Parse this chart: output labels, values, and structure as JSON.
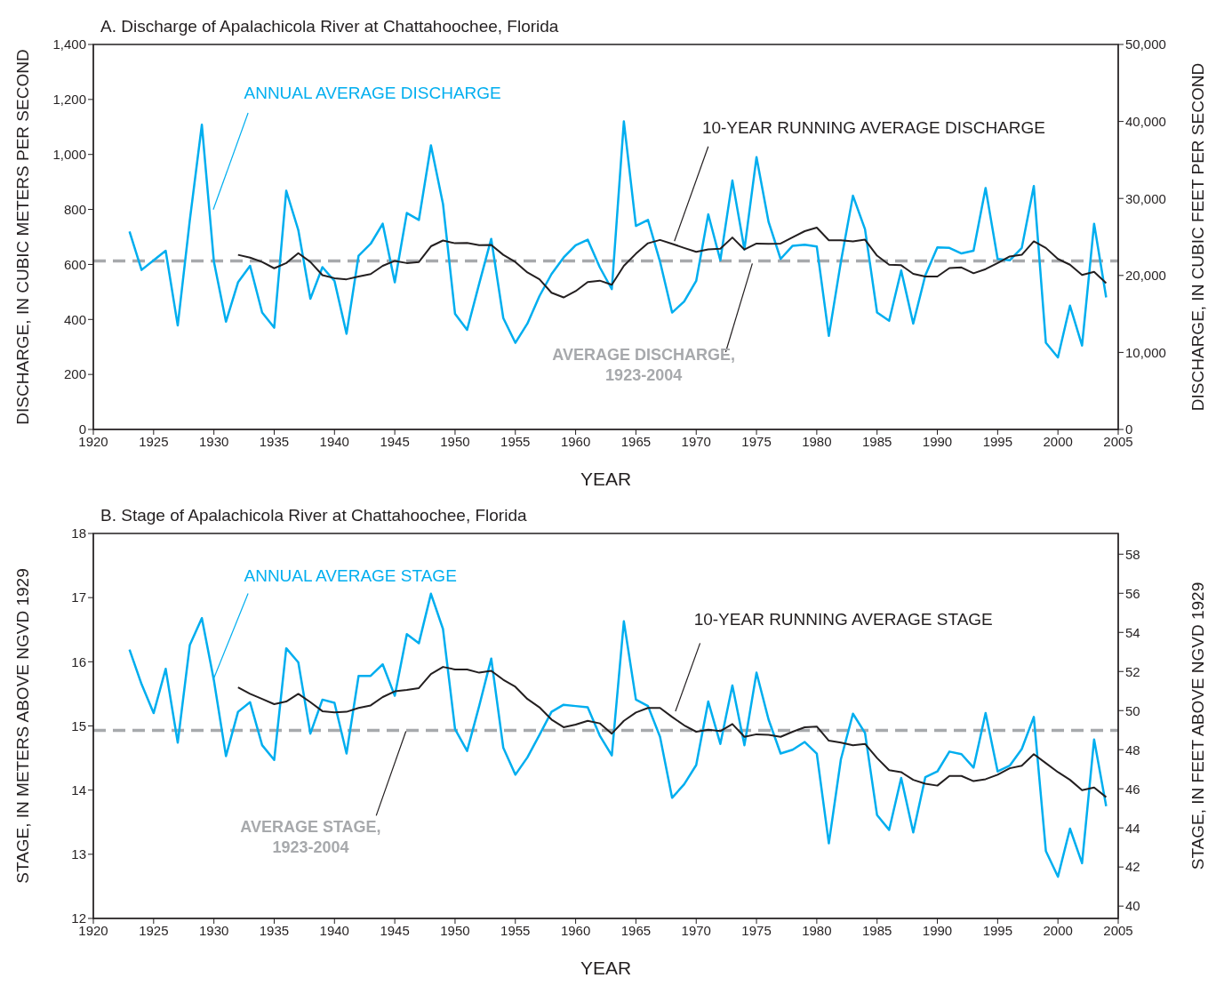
{
  "chart_data": [
    {
      "type": "line",
      "title": "A.  Discharge of Apalachicola River at Chattahoochee, Florida",
      "xlabel": "YEAR",
      "ylabel": "DISCHARGE, IN CUBIC METERS PER SECOND",
      "y2label": "DISCHARGE, IN CUBIC FEET PER SECOND",
      "x": [
        1923,
        1924,
        1925,
        1926,
        1927,
        1928,
        1929,
        1930,
        1931,
        1932,
        1933,
        1934,
        1935,
        1936,
        1937,
        1938,
        1939,
        1940,
        1941,
        1942,
        1943,
        1944,
        1945,
        1946,
        1947,
        1948,
        1949,
        1950,
        1951,
        1952,
        1953,
        1954,
        1955,
        1956,
        1957,
        1958,
        1959,
        1960,
        1961,
        1962,
        1963,
        1964,
        1965,
        1966,
        1967,
        1968,
        1969,
        1970,
        1971,
        1972,
        1973,
        1974,
        1975,
        1976,
        1977,
        1978,
        1979,
        1980,
        1981,
        1982,
        1983,
        1984,
        1985,
        1986,
        1987,
        1988,
        1989,
        1990,
        1991,
        1992,
        1993,
        1994,
        1995,
        1996,
        1997,
        1998,
        1999,
        2000,
        2001,
        2002,
        2003,
        2004
      ],
      "series": [
        {
          "name": "ANNUAL AVERAGE DISCHARGE",
          "color": "#00aeef",
          "values": [
            720,
            580,
            615,
            650,
            378,
            760,
            1108,
            610,
            392,
            535,
            595,
            425,
            370,
            868,
            725,
            475,
            590,
            540,
            348,
            632,
            675,
            748,
            535,
            787,
            762,
            1033,
            820,
            420,
            362,
            530,
            693,
            405,
            315,
            385,
            485,
            565,
            625,
            670,
            690,
            590,
            510,
            1120,
            740,
            762,
            610,
            425,
            465,
            540,
            782,
            615,
            905,
            655,
            990,
            755,
            620,
            668,
            672,
            665,
            340,
            610,
            850,
            728,
            425,
            395,
            578,
            385,
            560,
            662,
            660,
            640,
            650,
            878,
            620,
            615,
            660,
            885,
            315,
            262,
            450,
            305,
            748,
            480
          ]
        },
        {
          "name": "10-YEAR RUNNING AVERAGE DISCHARGE",
          "color": "#231f20",
          "x": [
            1932,
            1933,
            1934,
            1935,
            1936,
            1937,
            1938,
            1939,
            1940,
            1941,
            1942,
            1943,
            1944,
            1945,
            1946,
            1947,
            1948,
            1949,
            1950,
            1951,
            1952,
            1953,
            1954,
            1955,
            1956,
            1957,
            1958,
            1959,
            1960,
            1961,
            1962,
            1963,
            1964,
            1965,
            1966,
            1967,
            1968,
            1969,
            1970,
            1971,
            1972,
            1973,
            1974,
            1975,
            1976,
            1977,
            1978,
            1979,
            1980,
            1981,
            1982,
            1983,
            1984,
            1985,
            1986,
            1987,
            1988,
            1989,
            1990,
            1991,
            1992,
            1993,
            1994,
            1995,
            1996,
            1997,
            1998,
            1999,
            2000,
            2001,
            2002,
            2003,
            2004
          ],
          "values": [
            635,
            625,
            609,
            586,
            605,
            641,
            609,
            561,
            550,
            546,
            556,
            565,
            595,
            613,
            605,
            609,
            666,
            687,
            677,
            678,
            670,
            671,
            635,
            609,
            571,
            546,
            497,
            480,
            503,
            536,
            541,
            526,
            595,
            639,
            677,
            689,
            675,
            660,
            646,
            655,
            657,
            698,
            654,
            676,
            675,
            676,
            699,
            721,
            734,
            688,
            688,
            684,
            690,
            632,
            599,
            597,
            566,
            556,
            556,
            587,
            589,
            568,
            583,
            605,
            629,
            635,
            684,
            660,
            620,
            599,
            562,
            573,
            532
          ]
        }
      ],
      "xlim": [
        1920,
        2005
      ],
      "xticks": [
        1920,
        1925,
        1930,
        1935,
        1940,
        1945,
        1950,
        1955,
        1960,
        1965,
        1970,
        1975,
        1980,
        1985,
        1990,
        1995,
        2000,
        2005
      ],
      "ylim": [
        0,
        1400
      ],
      "yticks": [
        0,
        200,
        400,
        600,
        800,
        {
          "value": 1000,
          "label": "1,000"
        },
        {
          "value": 1200,
          "label": "1,200"
        },
        {
          "value": 1400,
          "label": "1,400"
        }
      ],
      "y2lim": [
        0,
        50000
      ],
      "y2ticks": [
        0,
        {
          "value": 10000,
          "label": "10,000"
        },
        {
          "value": 20000,
          "label": "20,000"
        },
        {
          "value": 30000,
          "label": "30,000"
        },
        {
          "value": 40000,
          "label": "40,000"
        },
        {
          "value": 50000,
          "label": "50,000"
        }
      ],
      "ref_lines": [
        {
          "axis": "y",
          "value": 613,
          "label": "AVERAGE DISCHARGE, 1923-2004",
          "color": "#a7a9ac",
          "line_style": "dashed"
        }
      ]
    },
    {
      "type": "line",
      "title": "B.  Stage of Apalachicola River at Chattahoochee, Florida",
      "xlabel": "YEAR",
      "ylabel": "STAGE, IN METERS ABOVE NGVD 1929",
      "y2label": "STAGE, IN FEET ABOVE NGVD 1929",
      "x": [
        1923,
        1924,
        1925,
        1926,
        1927,
        1928,
        1929,
        1930,
        1931,
        1932,
        1933,
        1934,
        1935,
        1936,
        1937,
        1938,
        1939,
        1940,
        1941,
        1942,
        1943,
        1944,
        1945,
        1946,
        1947,
        1948,
        1949,
        1950,
        1951,
        1952,
        1953,
        1954,
        1955,
        1956,
        1957,
        1958,
        1959,
        1960,
        1961,
        1962,
        1963,
        1964,
        1965,
        1966,
        1967,
        1968,
        1969,
        1970,
        1971,
        1972,
        1973,
        1974,
        1975,
        1976,
        1977,
        1978,
        1979,
        1980,
        1981,
        1982,
        1983,
        1984,
        1985,
        1986,
        1987,
        1988,
        1989,
        1990,
        1991,
        1992,
        1993,
        1994,
        1995,
        1996,
        1997,
        1998,
        1999,
        2000,
        2001,
        2002,
        2003,
        2004
      ],
      "series": [
        {
          "name": "ANNUAL AVERAGE STAGE",
          "color": "#00aeef",
          "values": [
            16.19,
            15.65,
            15.2,
            15.89,
            14.74,
            16.26,
            16.68,
            15.71,
            14.53,
            15.22,
            15.37,
            14.7,
            14.47,
            16.21,
            15.99,
            14.88,
            15.41,
            15.36,
            14.57,
            15.78,
            15.78,
            15.96,
            15.47,
            16.43,
            16.29,
            17.06,
            16.51,
            14.95,
            14.61,
            15.31,
            16.05,
            14.66,
            14.24,
            14.51,
            14.86,
            15.22,
            15.33,
            15.31,
            15.29,
            14.85,
            14.54,
            16.63,
            15.41,
            15.31,
            14.83,
            13.88,
            14.09,
            14.39,
            15.38,
            14.72,
            15.63,
            14.7,
            15.83,
            15.1,
            14.57,
            14.63,
            14.75,
            14.57,
            13.17,
            14.48,
            15.19,
            14.89,
            13.61,
            13.38,
            14.19,
            13.34,
            14.2,
            14.29,
            14.6,
            14.56,
            14.35,
            15.2,
            14.29,
            14.38,
            14.64,
            15.14,
            13.05,
            12.65,
            13.4,
            12.86,
            14.79,
            13.75
          ]
        },
        {
          "name": "10-YEAR RUNNING AVERAGE STAGE",
          "color": "#231f20",
          "x": [
            1932,
            1933,
            1934,
            1935,
            1936,
            1937,
            1938,
            1939,
            1940,
            1941,
            1942,
            1943,
            1944,
            1945,
            1946,
            1947,
            1948,
            1949,
            1950,
            1951,
            1952,
            1953,
            1954,
            1955,
            1956,
            1957,
            1958,
            1959,
            1960,
            1961,
            1962,
            1963,
            1964,
            1965,
            1966,
            1967,
            1968,
            1969,
            1970,
            1971,
            1972,
            1973,
            1974,
            1975,
            1976,
            1977,
            1978,
            1979,
            1980,
            1981,
            1982,
            1983,
            1984,
            1985,
            1986,
            1987,
            1988,
            1989,
            1990,
            1991,
            1992,
            1993,
            1994,
            1995,
            1996,
            1997,
            1998,
            1999,
            2000,
            2001,
            2002,
            2003,
            2004
          ],
          "values": [
            15.6,
            15.5,
            15.42,
            15.34,
            15.38,
            15.5,
            15.37,
            15.23,
            15.21,
            15.22,
            15.28,
            15.32,
            15.45,
            15.54,
            15.56,
            15.59,
            15.81,
            15.92,
            15.88,
            15.88,
            15.83,
            15.86,
            15.72,
            15.61,
            15.42,
            15.29,
            15.1,
            14.98,
            15.02,
            15.08,
            15.04,
            14.88,
            15.08,
            15.21,
            15.28,
            15.28,
            15.14,
            15.01,
            14.91,
            14.94,
            14.92,
            15.03,
            14.83,
            14.87,
            14.86,
            14.83,
            14.91,
            14.98,
            14.99,
            14.77,
            14.74,
            14.7,
            14.72,
            14.5,
            14.31,
            14.28,
            14.16,
            14.1,
            14.07,
            14.22,
            14.22,
            14.14,
            14.17,
            14.24,
            14.34,
            14.38,
            14.56,
            14.42,
            14.28,
            14.16,
            14.0,
            14.04,
            13.89
          ]
        }
      ],
      "xlim": [
        1920,
        2005
      ],
      "xticks": [
        1920,
        1925,
        1930,
        1935,
        1940,
        1945,
        1950,
        1955,
        1960,
        1965,
        1970,
        1975,
        1980,
        1985,
        1990,
        1995,
        2000,
        2005
      ],
      "ylim": [
        12,
        18
      ],
      "yticks": [
        12,
        13,
        14,
        15,
        16,
        17,
        18
      ],
      "y2lim": [
        39.37,
        59.06
      ],
      "y2ticks": [
        40,
        42,
        44,
        46,
        48,
        50,
        52,
        54,
        56,
        58
      ],
      "ref_lines": [
        {
          "axis": "y",
          "value": 14.93,
          "label": "AVERAGE STAGE, 1923-2004",
          "color": "#a7a9ac",
          "line_style": "dashed"
        }
      ]
    }
  ]
}
